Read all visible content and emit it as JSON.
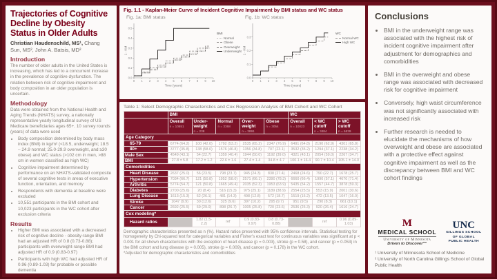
{
  "colors": {
    "maroon": "#7a0019",
    "table_header": "#7c1228",
    "panel": "#fcfaf9",
    "unc_navy": "#13294b",
    "blank_cell": "#c9c4c2"
  },
  "left": {
    "title": "Trajectories of Cognitive Decline by Obesity Status in Older Adults",
    "authors_lead": "Christian Haudenschild, MS¹,",
    "authors_rest": " Chang Sun, MS², John A. Batsis, MD²",
    "intro_heading": "Introduction",
    "intro_body": "The number of older adults in the United States is increasing, which has led to a concurrent increase in the prevalence of cognitive dysfunction. The relation between risk of cognitive impairment and body composition in an older population is uncertain.",
    "methodology_heading": "Methodology",
    "methodology_intro": "Data were obtained from the National Health and Aging Trends (NHATS) survey, a nationally representative yearly longitudinal survey of US Medicare beneficiaries ages 65+. 10 survey rounds (years) of data were used",
    "methodology_bullets": [
      "Body composition determined by body mass index (BMI) in kg/m² (<18.5, underweight; 18.5 – 24.9 normal; 25.0-29.9 overweight, and ≥30 obese) and WC status (>102 cm in men, >88 cm in women classified as high WC)",
      "Cognitive impairment determined by performance on an NHATS-validated composite of several cognitive tests in areas of executive function, orientation, and memory",
      "Respondents with dementia at baseline were excluded",
      "10,551 participants in the BMI cohort and 10,023 participants in the WC cohort after exclusion criteria"
    ],
    "results_heading": "Results",
    "results_bullets": [
      "Higher BMI was associated with a decreased risk of cognitive decline - obesity-range BMI had an adjusted HR of 0.8 (0.73-0.88); participants with overweight-range BMI had adjusted HR of 0.9 (0.83-0.97)",
      "Participants with high WC had adjusted HR of 0.96 (0.89-1.03) for probable or possible dementia",
      "These associations were consistent across all cognitive subdomains."
    ]
  },
  "figure": {
    "title": "Fig. 1.1 -  Kaplan-Meier Curve of Incident Cognitive Impairment by BMI status and WC status",
    "fig_a_label": "Fig. 1a: BMI status",
    "fig_b_label": "Fig. 1b: WC status"
  },
  "chart_data": [
    {
      "type": "line",
      "subtype": "step",
      "title": "Fig. 1a: BMI status",
      "xlabel": "Time (years)",
      "ylabel": "1 - KM",
      "xlim": [
        0,
        10
      ],
      "ylim": [
        0,
        0.55
      ],
      "xticks": [
        0,
        1,
        2,
        3,
        4,
        5,
        6,
        7,
        8,
        9,
        10
      ],
      "yticks": [
        0.0,
        0.1,
        0.2,
        0.3,
        0.4,
        0.5
      ],
      "legend_title": "BMI",
      "legend_position": "right",
      "grid": false,
      "x": [
        0,
        1,
        2,
        3,
        4,
        5,
        6,
        7,
        8,
        9
      ],
      "series": [
        {
          "name": "Normal",
          "color": "#c2c0bf",
          "line": "dotted",
          "values": [
            0.02,
            0.05,
            0.09,
            0.12,
            0.15,
            0.18,
            0.21,
            0.25,
            0.28,
            0.31
          ]
        },
        {
          "name": "Obese",
          "color": "#979492",
          "line": "dashed",
          "values": [
            0.02,
            0.06,
            0.1,
            0.13,
            0.17,
            0.2,
            0.23,
            0.27,
            0.3,
            0.32
          ]
        },
        {
          "name": "Overweight",
          "color": "#716e6c",
          "line": "dashdot",
          "values": [
            0.02,
            0.05,
            0.08,
            0.11,
            0.15,
            0.18,
            0.21,
            0.24,
            0.27,
            0.3
          ]
        },
        {
          "name": "Underweight",
          "color": "#201d1c",
          "line": "solid",
          "values": [
            0.02,
            0.09,
            0.19,
            0.28,
            0.38,
            0.5,
            0.5,
            0.5,
            0.5,
            0.5
          ]
        }
      ]
    },
    {
      "type": "line",
      "subtype": "step",
      "title": "Fig. 1b: WC status",
      "xlabel": "Time (years)",
      "ylabel": "1 - KM",
      "xlim": [
        0,
        10
      ],
      "ylim": [
        0,
        0.4
      ],
      "xticks": [
        0,
        1,
        2,
        3,
        4,
        5,
        6,
        7,
        8,
        9,
        10
      ],
      "yticks": [
        0.0,
        0.1,
        0.2,
        0.3
      ],
      "legend_title": "WC",
      "legend_position": "right",
      "grid": false,
      "x": [
        0,
        1,
        2,
        3,
        4,
        5,
        6,
        7,
        8,
        9
      ],
      "series": [
        {
          "name": "Normal WC",
          "color": "#9b9896",
          "line": "dashed",
          "values": [
            0.02,
            0.05,
            0.08,
            0.11,
            0.14,
            0.17,
            0.2,
            0.24,
            0.27,
            0.3
          ]
        },
        {
          "name": "High WC",
          "color": "#2a2726",
          "line": "solid",
          "values": [
            0.02,
            0.05,
            0.09,
            0.12,
            0.16,
            0.19,
            0.22,
            0.26,
            0.3,
            0.33
          ]
        }
      ]
    }
  ],
  "table": {
    "title": "Table 1: Select Demographic Characteristics and Cox Regression Analysis of  BMI Cohort and WC Cohort",
    "group_headers": [
      {
        "label": "BMI",
        "span": 5
      },
      {
        "label": "WC",
        "span": 3
      }
    ],
    "columns": [
      {
        "label": "Overall",
        "n": "n = 10551"
      },
      {
        "label": "Under-weight",
        "n": "n = 238"
      },
      {
        "label": "Normal",
        "n": "n = 3368"
      },
      {
        "label": "Over-weight",
        "n": "n = 3891"
      },
      {
        "label": "Obese",
        "n": "n = 3054"
      },
      {
        "label": "Overall",
        "n": "n = 10023"
      },
      {
        "label": "< WC cutoff",
        "n": "n = 3484"
      },
      {
        "label": "> WC cutoff",
        "n": "n = 6539"
      }
    ],
    "rows": [
      {
        "type": "band",
        "label": "Age Category"
      },
      {
        "type": "data",
        "label": "65-79",
        "indent": true,
        "cells": [
          "6774 (64.2)",
          "100 (42.0)",
          "1792 (53.2)",
          "2535 (65.2)",
          "2347 (76.9)",
          "6491 (64.8)",
          "2190 (62.9)",
          "4301 (65.8)"
        ]
      },
      {
        "type": "data",
        "label": "80+",
        "indent": true,
        "cells": [
          "3777 (35.8)",
          "138 (58.0)",
          "1576 (46.8)",
          "1356 (34.8)",
          "707 (23.1)",
          "3532 (35.2)",
          "1294 (37.1)",
          "2238 (34.2)"
        ]
      },
      {
        "type": "data",
        "label": "Male Sex",
        "indent": false,
        "cells": [
          "4549 (43.1)",
          "54 (22.7)",
          "1359 (40.4)",
          "1944 (50.0)",
          "1192 (39.0)",
          "4321 (43.1)",
          "2054 (59.0)",
          "2267 (34.7)"
        ]
      },
      {
        "type": "data",
        "label": "BMI",
        "indent": false,
        "cells": [
          "27.8 ± 5.8",
          "17.2 ± 1.2",
          "22.6 ± 1.6",
          "27.4 ± 1.4",
          "34.8 ± 4.7",
          "100.1 ± 16.4",
          "90.7 ± 10.4",
          "105.1 ± 14.0"
        ]
      },
      {
        "type": "band",
        "label": "Comorbidities"
      },
      {
        "type": "data",
        "label": "Heart Disease",
        "indent": true,
        "cells": [
          "2637 (25.0)",
          "56 (23.5)",
          "798 (23.7)",
          "945 (24.3)",
          "838 (27.4)",
          "2468 (24.6)",
          "790 (22.7)",
          "1678 (25.7)"
        ]
      },
      {
        "type": "data",
        "label": "Hypertension",
        "indent": true,
        "cells": [
          "7034 (66.7)",
          "121 (50.8)",
          "1952 (58.0)",
          "2571 (66.1)",
          "2390 (78.3)",
          "6660 (66.4)",
          "1990 (57.1)",
          "4670 (71.4)"
        ]
      },
      {
        "type": "data",
        "label": "Arthritis",
        "indent": true,
        "cells": [
          "5774 (54.7)",
          "121 (50.8)",
          "1665 (49.4)",
          "2035 (52.3)",
          "1953 (63.9)",
          "5435 (54.2)",
          "1557 (44.7)",
          "3878 (59.3)"
        ]
      },
      {
        "type": "data",
        "label": "Diabetes",
        "indent": true,
        "cells": [
          "2700 (25.6)",
          "20 (8.4)",
          "516 (15.3)",
          "975 (25.1)",
          "1189 (38.9)",
          "2554 (25.5)",
          "553 (15.9)",
          "2001 (30.6)"
        ]
      },
      {
        "type": "data",
        "label": "Lung Disease",
        "indent": true,
        "cells": [
          "1613 (15.3)",
          "62 (26.1)",
          "481 (14.3)",
          "498 (12.8)",
          "572 (18.7)",
          "1519 (15.2)",
          "472 (13.5)",
          "1047 (16.0)"
        ]
      },
      {
        "type": "data",
        "label": "Stroke",
        "indent": true,
        "cells": [
          "1047 (9.9)",
          "30 (12.6)",
          "325 (9.6)",
          "397 (10.2)",
          "295 (9.7)",
          "951 (9.5)",
          "290 (8.3)",
          "661 (10.1)"
        ]
      },
      {
        "type": "data",
        "label": "Cancer",
        "indent": true,
        "cells": [
          "2692 (25.5)",
          "69 (29.0)",
          "898 (26.7)",
          "1005 (25.8)",
          "720 (23.6)",
          "2536 (25.3)",
          "920 (26.4)",
          "1616 (24.7)"
        ]
      },
      {
        "type": "band",
        "label": "Cox modeling*"
      },
      {
        "type": "data",
        "label": "Hazard ratios",
        "indent": true,
        "cells": [
          null,
          "1.82 (1.5-2.2)",
          "ref",
          "0.9 (0.83-0.97)",
          "0.8 (0.73-0.88)",
          null,
          "ref",
          "0.96 (0.89-1.03)"
        ]
      }
    ],
    "footnote": "Demographic characteristics presented as n (%). Hazard ratios presented with 95% confidence intervals. Statistical testing for homogeneity by Chi-squared test for categorical variables and Fisher's exact test for continuous variables was significant at p < 0.001 for all shown characteristics with the exception of heart disease (p = 0.003), stroke (p = 0.58), and cancer (p = 0.053) in the BMI cohort and lung disease (p = 0.005), stroke (p = 0.009), and cancer (p = 0.178) in the WC cohort.",
    "footnote2": "*Adjusted for demographic characteristics and comorbidities"
  },
  "right": {
    "heading": "Conclusions",
    "bullets": [
      "BMI in the underweight range was associated with the highest risk of incident cognitive impairment after adjustment for demographics and comorbidities",
      "BMI in the overweight and obese range was associated with decreased risk for cognitive impairment",
      "Conversely, high waist circumference was not significantly associated with increased risk",
      "Further research is needed to elucidate the mechanisms of how overweight and obese are associated with a protective effect against cognitive impairment as well as the discrepancy between BMI and WC cohort findings"
    ],
    "umn_logo": {
      "m": "M",
      "line1": "MEDICAL SCHOOL",
      "line2": "University of Minnesota",
      "line3": "Driven to Discover™"
    },
    "unc_logo": {
      "acronym": "UNC",
      "line1": "GILLINGS SCHOOL",
      "line2": "OF GLOBAL",
      "line3": "PUBLIC HEALTH"
    },
    "affiliations": [
      "¹ University of Minnesota School of Medicine",
      "² University of North Carolina Gillings School of Global Public Health"
    ]
  }
}
